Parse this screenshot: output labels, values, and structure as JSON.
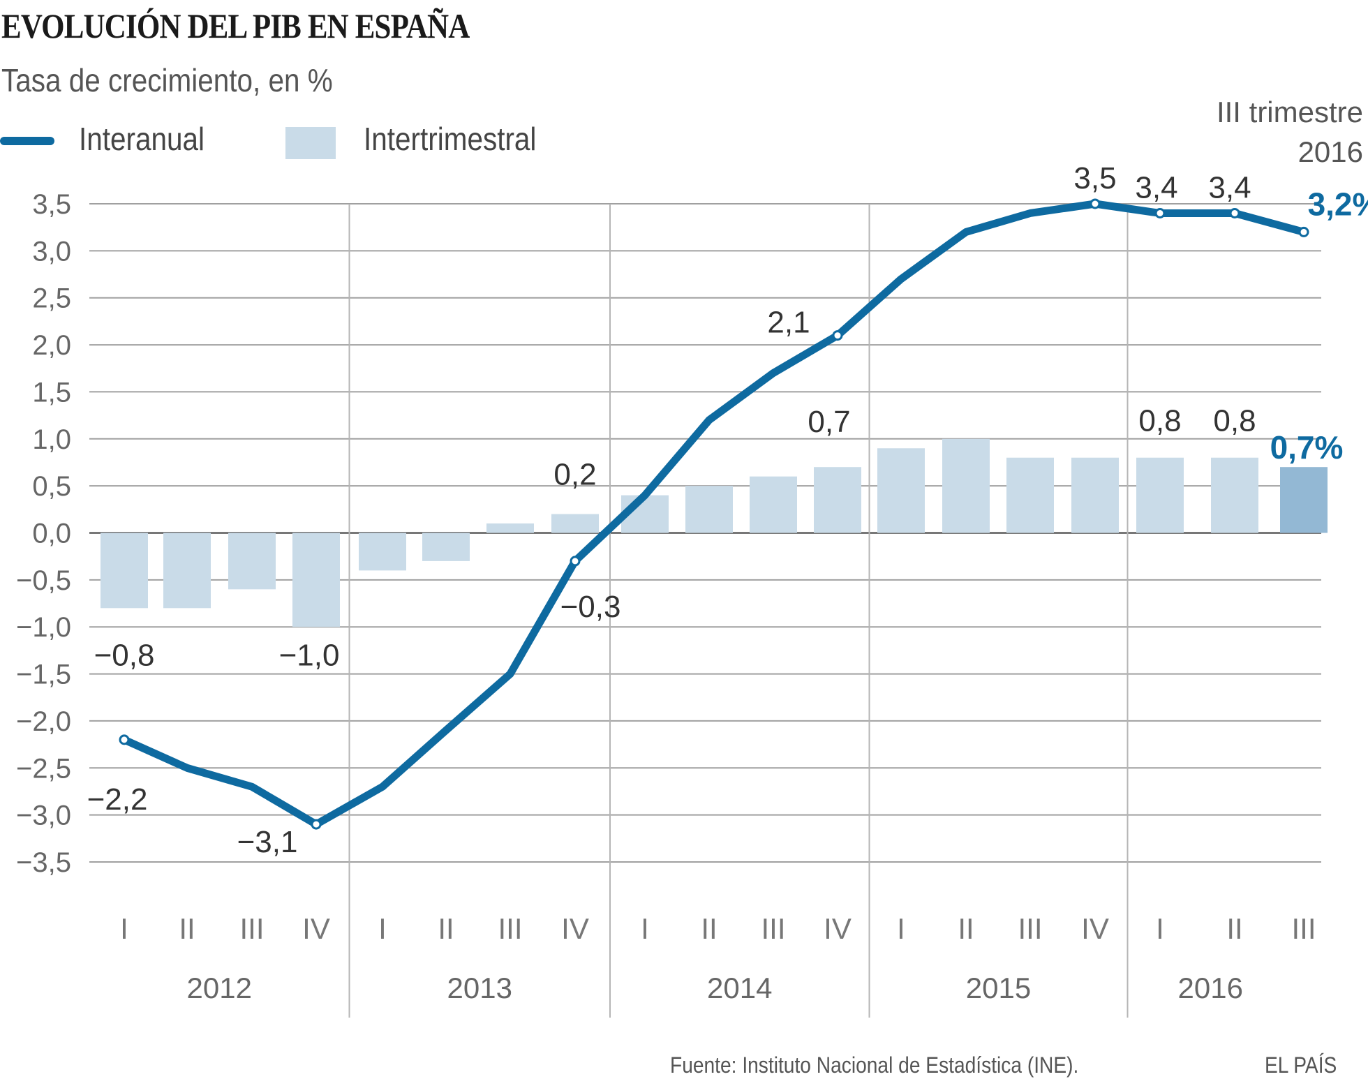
{
  "header": {
    "title": "EVOLUCIÓN DEL PIB EN ESPAÑA",
    "subtitle": "Tasa de crecimiento, en %"
  },
  "legend": {
    "line_label": "Interanual",
    "bar_label": "Intertrimestral"
  },
  "annotation": {
    "period_line1": "III trimestre",
    "period_line2": "2016"
  },
  "footer": {
    "source": "Fuente: Instituto Nacional de Estadística (INE).",
    "brand": "EL PAÍS"
  },
  "colors": {
    "line": "#0e6aa0",
    "bar": "#c9dbe8",
    "bar_highlight": "#93b8d4",
    "grid": "#a0a0a0",
    "highlight_text": "#0e6aa0"
  },
  "chart_data": {
    "type": "bar+line",
    "title": "EVOLUCIÓN DEL PIB EN ESPAÑA",
    "subtitle": "Tasa de crecimiento, en %",
    "xlabel": "",
    "ylabel": "",
    "ylim": [
      -3.5,
      3.5
    ],
    "yticks": [
      3.5,
      3.0,
      2.5,
      2.0,
      1.5,
      1.0,
      0.5,
      0.0,
      -0.5,
      -1.0,
      -1.5,
      -2.0,
      -2.5,
      -3.0,
      -3.5
    ],
    "ytick_labels": [
      "3,5",
      "3,0",
      "2,5",
      "2,0",
      "1,5",
      "1,0",
      "0,5",
      "0,0",
      "−0,5",
      "−1,0",
      "−1,5",
      "−2,0",
      "−2,5",
      "−3,0",
      "−3,5"
    ],
    "grid": true,
    "legend_position": "top-left",
    "categories": [
      "I",
      "II",
      "III",
      "IV",
      "I",
      "II",
      "III",
      "IV",
      "I",
      "II",
      "III",
      "IV",
      "I",
      "II",
      "III",
      "IV",
      "I",
      "II",
      "III"
    ],
    "years": [
      {
        "label": "2012",
        "quarters": 4
      },
      {
        "label": "2013",
        "quarters": 4
      },
      {
        "label": "2014",
        "quarters": 4
      },
      {
        "label": "2015",
        "quarters": 4
      },
      {
        "label": "2016",
        "quarters": 3
      }
    ],
    "series": [
      {
        "name": "Intertrimestral",
        "type": "bar",
        "values": [
          -0.8,
          -0.8,
          -0.6,
          -1.0,
          -0.4,
          -0.3,
          0.1,
          0.2,
          0.4,
          0.5,
          0.6,
          0.7,
          0.9,
          1.0,
          0.8,
          0.8,
          0.8,
          0.8,
          0.7
        ]
      },
      {
        "name": "Interanual",
        "type": "line",
        "values": [
          -2.2,
          -2.5,
          -2.7,
          -3.1,
          -2.7,
          -2.1,
          -1.5,
          -0.3,
          0.4,
          1.2,
          1.7,
          2.1,
          2.7,
          3.2,
          3.4,
          3.5,
          3.4,
          3.4,
          3.2
        ]
      }
    ],
    "markers": {
      "Interanual": [
        0,
        3,
        7,
        11,
        15,
        16,
        17,
        18
      ]
    },
    "data_labels": [
      {
        "series": "Intertrimestral",
        "index": 0,
        "text": "−0,8",
        "highlight": false
      },
      {
        "series": "Intertrimestral",
        "index": 3,
        "text": "−1,0",
        "highlight": false
      },
      {
        "series": "Intertrimestral",
        "index": 7,
        "text": "0,2",
        "highlight": false
      },
      {
        "series": "Intertrimestral",
        "index": 11,
        "text": "0,7",
        "highlight": false
      },
      {
        "series": "Intertrimestral",
        "index": 16,
        "text": "0,8",
        "highlight": false
      },
      {
        "series": "Intertrimestral",
        "index": 17,
        "text": "0,8",
        "highlight": false
      },
      {
        "series": "Intertrimestral",
        "index": 18,
        "text": "0,7%",
        "highlight": true
      },
      {
        "series": "Interanual",
        "index": 0,
        "text": "−2,2",
        "highlight": false
      },
      {
        "series": "Interanual",
        "index": 3,
        "text": "−3,1",
        "highlight": false
      },
      {
        "series": "Interanual",
        "index": 7,
        "text": "−0,3",
        "highlight": false
      },
      {
        "series": "Interanual",
        "index": 11,
        "text": "2,1",
        "highlight": false
      },
      {
        "series": "Interanual",
        "index": 15,
        "text": "3,5",
        "highlight": false
      },
      {
        "series": "Interanual",
        "index": 16,
        "text": "3,4",
        "highlight": false
      },
      {
        "series": "Interanual",
        "index": 17,
        "text": "3,4",
        "highlight": false
      },
      {
        "series": "Interanual",
        "index": 18,
        "text": "3,2%",
        "highlight": true
      }
    ]
  }
}
